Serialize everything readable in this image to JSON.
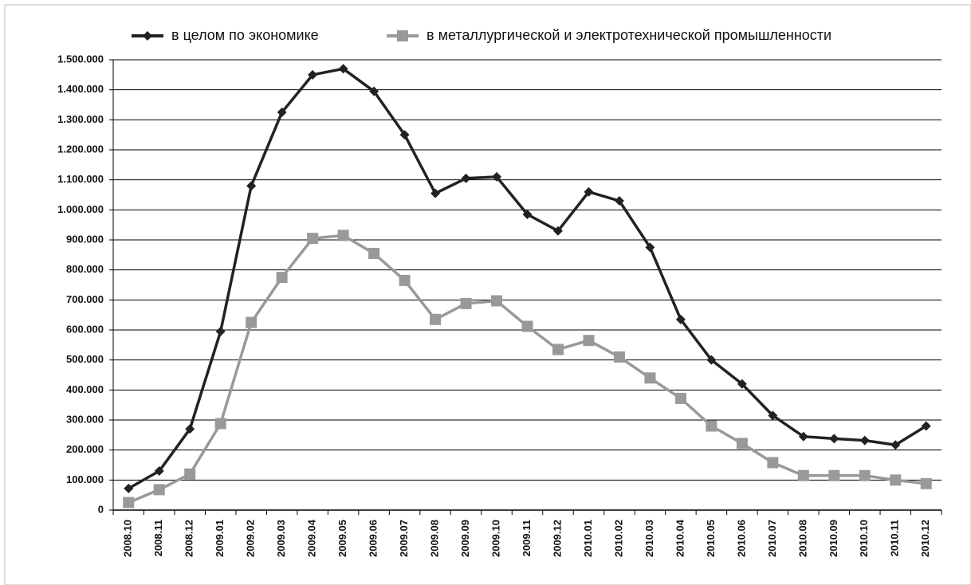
{
  "chart_data": {
    "type": "line",
    "categories": [
      "2008.10",
      "2008.11",
      "2008.12",
      "2009.01",
      "2009.02",
      "2009.03",
      "2009.04",
      "2009.05",
      "2009.06",
      "2009.07",
      "2009.08",
      "2009.09",
      "2009.10",
      "2009.11",
      "2009.12",
      "2010.01",
      "2010.02",
      "2010.03",
      "2010.04",
      "2010.05",
      "2010.06",
      "2010.07",
      "2010.08",
      "2010.09",
      "2010.10",
      "2010.11",
      "2010.12"
    ],
    "series": [
      {
        "name": "в целом по экономике",
        "color": "#222222",
        "marker": "diamond",
        "values": [
          72000,
          130000,
          270000,
          595000,
          1080000,
          1325000,
          1450000,
          1470000,
          1395000,
          1250000,
          1055000,
          1105000,
          1110000,
          985000,
          930000,
          1060000,
          1030000,
          875000,
          635000,
          500000,
          420000,
          315000,
          245000,
          238000,
          232000,
          217000,
          280000
        ]
      },
      {
        "name": "в металлургической и электротехнической промышленности",
        "color": "#999999",
        "marker": "square",
        "values": [
          25000,
          68000,
          120000,
          288000,
          625000,
          775000,
          905000,
          915000,
          855000,
          765000,
          635000,
          688000,
          697000,
          612000,
          535000,
          565000,
          510000,
          440000,
          372000,
          280000,
          222000,
          158000,
          115000,
          115000,
          115000,
          100000,
          88000
        ]
      }
    ],
    "ylim": [
      0,
      1500000
    ],
    "yticks": [
      0,
      {
        "value": 100000,
        "label": "100.000"
      },
      {
        "value": 200000,
        "label": "200.000"
      },
      {
        "value": 300000,
        "label": "300.000"
      },
      {
        "value": 400000,
        "label": "400.000"
      },
      {
        "value": 500000,
        "label": "500.000"
      },
      {
        "value": 600000,
        "label": "600.000"
      },
      {
        "value": 700000,
        "label": "700.000"
      },
      {
        "value": 800000,
        "label": "800.000"
      },
      {
        "value": 900000,
        "label": "900.000"
      },
      {
        "value": 1000000,
        "label": "1.000.000"
      },
      {
        "value": 1100000,
        "label": "1.100.000"
      },
      {
        "value": 1200000,
        "label": "1.200.000"
      },
      {
        "value": 1300000,
        "label": "1.300.000"
      },
      {
        "value": 1400000,
        "label": "1.400.000"
      },
      {
        "value": 1500000,
        "label": "1.500.000"
      }
    ],
    "grid": true,
    "legend": "top"
  }
}
